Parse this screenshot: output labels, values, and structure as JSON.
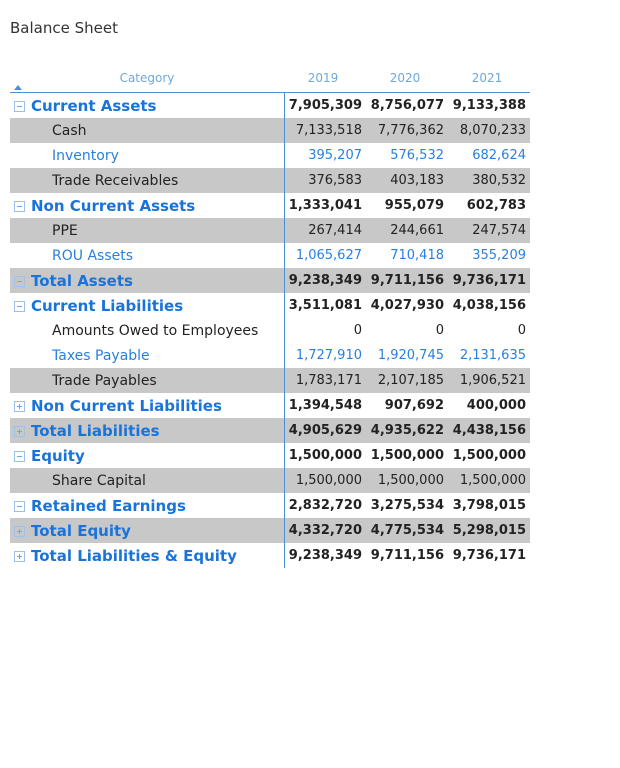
{
  "title": "Balance Sheet",
  "table": {
    "columns": [
      "Category",
      "2019",
      "2020",
      "2021"
    ],
    "rows": [
      {
        "label": "Current Assets",
        "values": [
          "7,905,309",
          "8,756,077",
          "9,133,388"
        ]
      },
      {
        "label": "Cash",
        "values": [
          "7,133,518",
          "7,776,362",
          "8,070,233"
        ]
      },
      {
        "label": "Inventory",
        "values": [
          "395,207",
          "576,532",
          "682,624"
        ]
      },
      {
        "label": "Trade Receivables",
        "values": [
          "376,583",
          "403,183",
          "380,532"
        ]
      },
      {
        "label": "Non Current Assets",
        "values": [
          "1,333,041",
          "955,079",
          "602,783"
        ]
      },
      {
        "label": "PPE",
        "values": [
          "267,414",
          "244,661",
          "247,574"
        ]
      },
      {
        "label": "ROU Assets",
        "values": [
          "1,065,627",
          "710,418",
          "355,209"
        ]
      },
      {
        "label": "Total Assets",
        "values": [
          "9,238,349",
          "9,711,156",
          "9,736,171"
        ]
      },
      {
        "label": "Current Liabilities",
        "values": [
          "3,511,081",
          "4,027,930",
          "4,038,156"
        ]
      },
      {
        "label": "Amounts Owed to Employees",
        "values": [
          "0",
          "0",
          "0"
        ]
      },
      {
        "label": "Taxes Payable",
        "values": [
          "1,727,910",
          "1,920,745",
          "2,131,635"
        ]
      },
      {
        "label": "Trade Payables",
        "values": [
          "1,783,171",
          "2,107,185",
          "1,906,521"
        ]
      },
      {
        "label": "Non Current Liabilities",
        "values": [
          "1,394,548",
          "907,692",
          "400,000"
        ]
      },
      {
        "label": "Total Liabilities",
        "values": [
          "4,905,629",
          "4,935,622",
          "4,438,156"
        ]
      },
      {
        "label": "Equity",
        "values": [
          "1,500,000",
          "1,500,000",
          "1,500,000"
        ]
      },
      {
        "label": "Share Capital",
        "values": [
          "1,500,000",
          "1,500,000",
          "1,500,000"
        ]
      },
      {
        "label": "Retained Earnings",
        "values": [
          "2,832,720",
          "3,275,534",
          "3,798,015"
        ]
      },
      {
        "label": "Total Equity",
        "values": [
          "4,332,720",
          "4,775,534",
          "5,298,015"
        ]
      },
      {
        "label": "Total Liabilities & Equity",
        "values": [
          "9,238,349",
          "9,711,156",
          "9,736,171"
        ]
      }
    ]
  }
}
